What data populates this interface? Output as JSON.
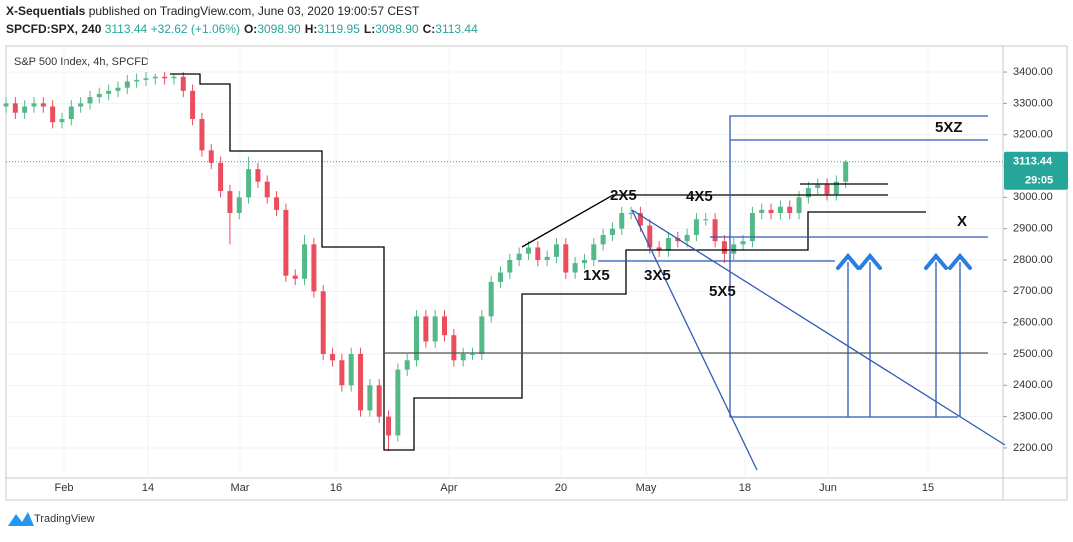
{
  "header": {
    "author": "X-Sequentials",
    "published": "published on TradingView.com, June 03, 2020 19:00:57 CEST",
    "symbol": "SPCFD:SPX, 240",
    "last": "3113.44",
    "change": "+32.62 (+1.06%)",
    "ohlc": [
      {
        "k": "O:",
        "v": "3098.90"
      },
      {
        "k": "H:",
        "v": "3119.95"
      },
      {
        "k": "L:",
        "v": "3098.90"
      },
      {
        "k": "C:",
        "v": "3113.44"
      }
    ]
  },
  "chart_data": {
    "type": "candlestick",
    "title": "S&P 500 Index, 4h, SPCFD",
    "up_color": "#53b987",
    "down_color": "#eb4d5c",
    "xlim": [
      0,
      106.86
    ],
    "xticks": [
      {
        "value": 6.22,
        "label": "Feb"
      },
      {
        "value": 15.22,
        "label": "14"
      },
      {
        "value": 25.08,
        "label": "Mar"
      },
      {
        "value": 35.37,
        "label": "16"
      },
      {
        "value": 47.48,
        "label": "Apr"
      },
      {
        "value": 59.49,
        "label": "20"
      },
      {
        "value": 68.6,
        "label": "May"
      },
      {
        "value": 79.2,
        "label": "18"
      },
      {
        "value": 88.1,
        "label": "Jun"
      },
      {
        "value": 98.82,
        "label": "15"
      }
    ],
    "ylim": [
      2100,
      3500
    ],
    "yticks": [
      {
        "value": 2200,
        "label": "2200.00"
      },
      {
        "value": 2300,
        "label": "2300.00"
      },
      {
        "value": 2400,
        "label": "2400.00"
      },
      {
        "value": 2500,
        "label": "2500.00"
      },
      {
        "value": 2600,
        "label": "2600.00"
      },
      {
        "value": 2700,
        "label": "2700.00"
      },
      {
        "value": 2800,
        "label": "2800.00"
      },
      {
        "value": 2900,
        "label": "2900.00"
      },
      {
        "value": 3000,
        "label": "3000.00"
      },
      {
        "value": 3100,
        "label": "3100.00"
      },
      {
        "value": 3200,
        "label": "3200.00"
      },
      {
        "value": 3300,
        "label": "3300.00"
      },
      {
        "value": 3400,
        "label": "3400.00"
      }
    ],
    "last_price": 3113.44,
    "countdown": "29:05",
    "x": [
      0,
      1,
      2,
      3,
      4,
      5,
      6,
      7,
      8,
      9,
      10,
      11,
      12,
      13,
      14,
      15,
      16,
      17,
      18,
      19,
      20,
      21,
      22,
      23,
      24,
      25,
      26,
      27,
      28,
      29,
      30,
      31,
      32,
      33,
      34,
      35,
      36,
      37,
      38,
      39,
      40,
      41,
      42,
      43,
      44,
      45,
      46,
      47,
      48,
      49,
      50,
      51,
      52,
      53,
      54,
      55,
      56,
      57,
      58,
      59,
      60,
      61,
      62,
      63,
      64,
      65,
      66,
      67,
      68,
      69,
      70,
      71,
      72,
      73,
      74,
      75,
      76,
      77,
      78,
      79,
      80,
      81,
      82,
      83,
      84,
      85,
      86,
      87,
      88,
      89,
      90
    ],
    "open": [
      3290,
      3300,
      3270,
      3290,
      3300,
      3290,
      3240,
      3250,
      3290,
      3300,
      3320,
      3330,
      3340,
      3350,
      3370,
      3375,
      3380,
      3385,
      3380,
      3385,
      3340,
      3250,
      3150,
      3110,
      3020,
      2950,
      3000,
      3090,
      3050,
      3000,
      2960,
      2750,
      2740,
      2850,
      2700,
      2500,
      2480,
      2400,
      2500,
      2320,
      2400,
      2300,
      2240,
      2450,
      2480,
      2620,
      2540,
      2620,
      2560,
      2480,
      2500,
      2500,
      2620,
      2730,
      2760,
      2800,
      2820,
      2840,
      2800,
      2810,
      2850,
      2760,
      2790,
      2800,
      2850,
      2880,
      2900,
      2950,
      2950,
      2910,
      2840,
      2830,
      2870,
      2860,
      2880,
      2930,
      2930,
      2860,
      2820,
      2850,
      2860,
      2950,
      2960,
      2950,
      2970,
      2950,
      3000,
      3030,
      3040,
      3010,
      3050
    ],
    "high": [
      3320,
      3320,
      3310,
      3320,
      3320,
      3310,
      3270,
      3310,
      3320,
      3340,
      3350,
      3360,
      3370,
      3390,
      3395,
      3400,
      3395,
      3400,
      3395,
      3400,
      3360,
      3270,
      3170,
      3130,
      3040,
      3020,
      3130,
      3110,
      3070,
      3020,
      2980,
      2770,
      2880,
      2870,
      2720,
      2520,
      2500,
      2520,
      2520,
      2420,
      2420,
      2320,
      2470,
      2500,
      2640,
      2640,
      2640,
      2640,
      2580,
      2520,
      2520,
      2640,
      2750,
      2780,
      2820,
      2840,
      2860,
      2860,
      2830,
      2870,
      2870,
      2810,
      2820,
      2870,
      2900,
      2920,
      2970,
      2970,
      2970,
      2930,
      2860,
      2890,
      2890,
      2900,
      2950,
      2950,
      2950,
      2880,
      2870,
      2880,
      2970,
      2980,
      2980,
      2990,
      2990,
      3020,
      3050,
      3060,
      3060,
      3070,
      3120
    ],
    "low": [
      3270,
      3250,
      3250,
      3270,
      3270,
      3220,
      3220,
      3230,
      3270,
      3280,
      3300,
      3310,
      3320,
      3330,
      3350,
      3355,
      3360,
      3360,
      3360,
      3320,
      3230,
      3130,
      3090,
      3000,
      2850,
      2930,
      2980,
      3030,
      2980,
      2940,
      2730,
      2720,
      2720,
      2680,
      2480,
      2460,
      2380,
      2380,
      2300,
      2300,
      2280,
      2190,
      2220,
      2430,
      2460,
      2520,
      2520,
      2540,
      2460,
      2460,
      2480,
      2480,
      2600,
      2710,
      2740,
      2780,
      2800,
      2780,
      2780,
      2790,
      2740,
      2740,
      2770,
      2780,
      2830,
      2860,
      2880,
      2930,
      2890,
      2820,
      2810,
      2810,
      2840,
      2840,
      2860,
      2910,
      2840,
      2790,
      2800,
      2830,
      2840,
      2930,
      2930,
      2930,
      2930,
      2930,
      2980,
      3010,
      2990,
      2990,
      3030
    ],
    "close": [
      3300,
      3270,
      3290,
      3300,
      3290,
      3240,
      3250,
      3290,
      3300,
      3320,
      3330,
      3340,
      3350,
      3370,
      3375,
      3380,
      3385,
      3380,
      3385,
      3340,
      3250,
      3150,
      3110,
      3020,
      2950,
      3000,
      3090,
      3050,
      3000,
      2960,
      2750,
      2740,
      2850,
      2700,
      2500,
      2480,
      2400,
      2500,
      2320,
      2400,
      2300,
      2240,
      2450,
      2480,
      2620,
      2540,
      2620,
      2560,
      2480,
      2500,
      2500,
      2620,
      2730,
      2760,
      2800,
      2820,
      2840,
      2800,
      2810,
      2850,
      2760,
      2790,
      2800,
      2850,
      2880,
      2900,
      2950,
      2950,
      2910,
      2840,
      2830,
      2870,
      2860,
      2880,
      2930,
      2930,
      2860,
      2820,
      2850,
      2860,
      2950,
      2960,
      2950,
      2970,
      2950,
      3000,
      3030,
      3040,
      3010,
      3050,
      3113.44
    ],
    "annotations": [
      "5XZ",
      "2X5",
      "4X5",
      "X",
      "1X5",
      "3X5",
      "5X5"
    ]
  },
  "footer": {
    "brand": "TradingView"
  }
}
